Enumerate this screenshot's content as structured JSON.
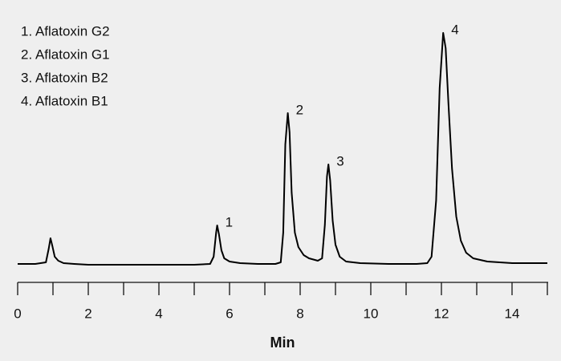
{
  "chart_data": {
    "type": "line",
    "xlabel": "Min",
    "legend_text": [
      "1.  Aflatoxin G2",
      "2.  Aflatoxin G1",
      "3.  Aflatoxin B2",
      "4.  Aflatoxin B1"
    ],
    "x": [
      0,
      0.5,
      0.8,
      0.88,
      0.93,
      0.98,
      1.05,
      1.15,
      1.3,
      1.6,
      2,
      3,
      4,
      5,
      5.45,
      5.55,
      5.62,
      5.65,
      5.7,
      5.77,
      5.85,
      6.0,
      6.3,
      6.8,
      7.3,
      7.45,
      7.52,
      7.58,
      7.65,
      7.7,
      7.76,
      7.85,
      7.95,
      8.1,
      8.25,
      8.5,
      8.62,
      8.7,
      8.76,
      8.8,
      8.85,
      8.92,
      9.0,
      9.12,
      9.3,
      9.7,
      10.5,
      11.3,
      11.6,
      11.72,
      11.85,
      11.95,
      12.05,
      12.12,
      12.2,
      12.3,
      12.42,
      12.55,
      12.7,
      12.9,
      13.3,
      14,
      15
    ],
    "series": [
      {
        "color": "#000000",
        "values": [
          1,
          1,
          3,
          20,
          33,
          24,
          10,
          5,
          2,
          1,
          0,
          0,
          0,
          0,
          1,
          10,
          40,
          49,
          38,
          18,
          8,
          4,
          2,
          1,
          1,
          3,
          40,
          150,
          189,
          165,
          90,
          40,
          22,
          12,
          8,
          5,
          8,
          50,
          110,
          125,
          105,
          55,
          25,
          10,
          4,
          2,
          1,
          1,
          2,
          10,
          80,
          220,
          289,
          270,
          200,
          120,
          60,
          30,
          15,
          8,
          4,
          2,
          2
        ]
      }
    ],
    "annotations": [
      {
        "text": "1",
        "x": 5.65,
        "y": 49
      },
      {
        "text": "2",
        "x": 7.65,
        "y": 189
      },
      {
        "text": "3",
        "x": 8.8,
        "y": 125
      },
      {
        "text": "4",
        "x": 12.05,
        "y": 289
      }
    ],
    "xlim": [
      0,
      15
    ],
    "xticks": [
      0,
      2,
      4,
      6,
      8,
      10,
      12,
      14
    ],
    "minor_xticks": [
      1,
      3,
      5,
      7,
      9,
      11,
      13,
      15
    ],
    "ylim": [
      0,
      300
    ],
    "grid": false
  }
}
